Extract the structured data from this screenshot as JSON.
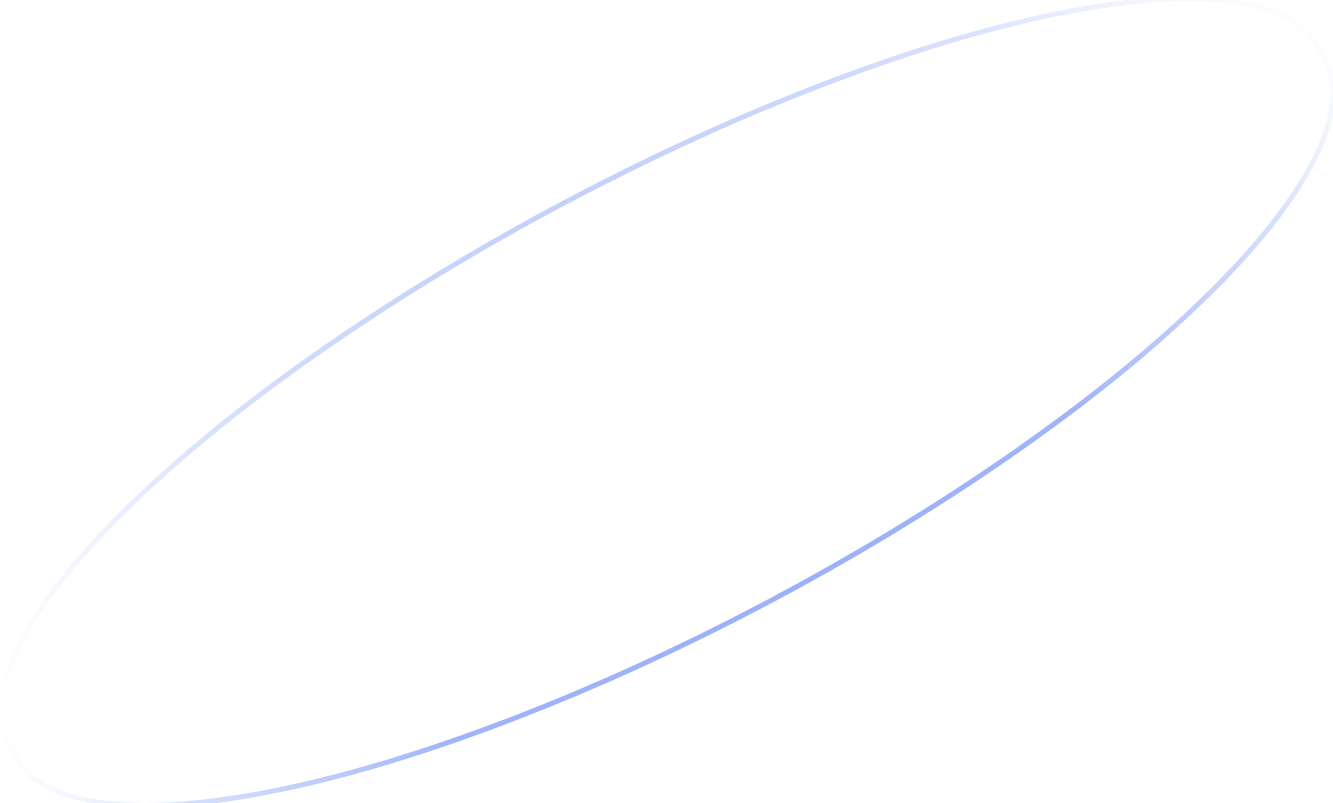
{
  "decoration": {
    "shape": "tilted-ellipse-outline",
    "stroke_color": "#9ab0fb",
    "background_color": "#ffffff"
  }
}
